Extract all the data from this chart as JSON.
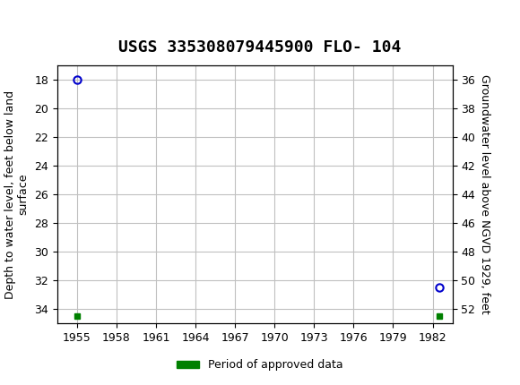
{
  "title": "USGS 335308079445900 FLO- 104",
  "header_color": "#1a6b3c",
  "bg_color": "#ffffff",
  "plot_bg_color": "#ffffff",
  "grid_color": "#c0c0c0",
  "x_ticks": [
    1955,
    1958,
    1961,
    1964,
    1967,
    1970,
    1973,
    1976,
    1979,
    1982
  ],
  "xlim": [
    1953.5,
    1983.5
  ],
  "ylim_left": [
    17,
    35
  ],
  "ylim_right": [
    35,
    53
  ],
  "yticks_left": [
    18,
    20,
    22,
    24,
    26,
    28,
    30,
    32,
    34
  ],
  "yticks_right": [
    36,
    38,
    40,
    42,
    44,
    46,
    48,
    50,
    52
  ],
  "ylabel_left": "Depth to water level, feet below land\nsurface",
  "ylabel_right": "Groundwater level above NGVD 1929, feet",
  "circle_points": [
    {
      "x": 1955.0,
      "y_left": 18.0
    },
    {
      "x": 1982.5,
      "y_left": 32.5
    }
  ],
  "green_bar_points": [
    {
      "x": 1955.0,
      "y_left": 34.5
    },
    {
      "x": 1982.5,
      "y_left": 34.5
    }
  ],
  "circle_color": "#0000cc",
  "green_color": "#008000",
  "legend_label": "Period of approved data",
  "title_fontsize": 13,
  "axis_fontsize": 9,
  "tick_fontsize": 9
}
